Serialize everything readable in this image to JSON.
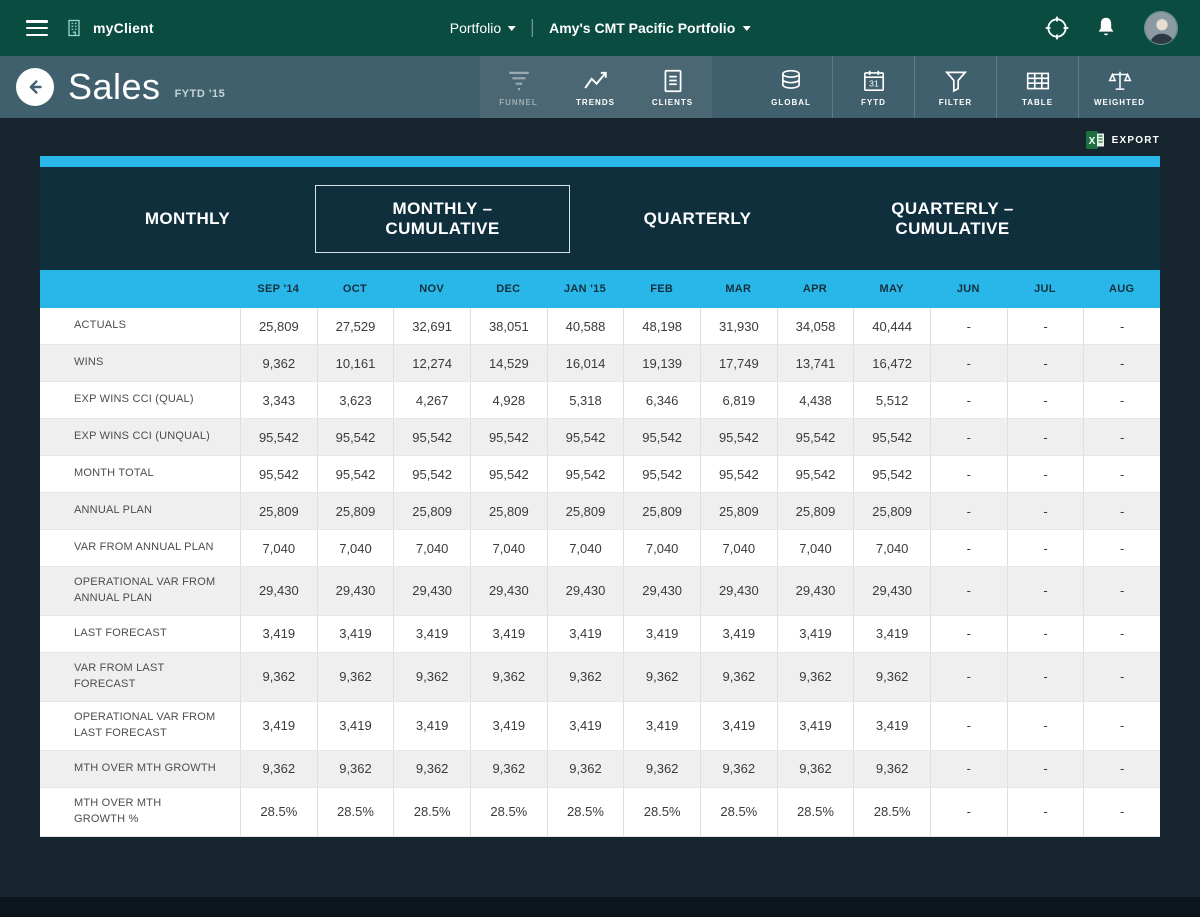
{
  "topbar": {
    "brand": "myClient",
    "portfolio_dropdown": "Portfolio",
    "portfolio_name": "Amy's CMT Pacific Portfolio"
  },
  "header": {
    "title": "Sales",
    "period": "FYTD '15",
    "nav": [
      {
        "label": "FUNNEL"
      },
      {
        "label": "TRENDS"
      },
      {
        "label": "CLIENTS"
      }
    ],
    "tools": [
      {
        "label": "GLOBAL"
      },
      {
        "label": "FYTD",
        "icon_text": "31"
      },
      {
        "label": "FILTER"
      },
      {
        "label": "TABLE"
      },
      {
        "label": "WEIGHTED"
      }
    ]
  },
  "export": {
    "label": "EXPORT"
  },
  "active_tab": "MONTHLY – CUMULATIVE",
  "tabs": [
    {
      "label": "MONTHLY"
    },
    {
      "label": "MONTHLY – CUMULATIVE"
    },
    {
      "label": "QUARTERLY"
    },
    {
      "label": "QUARTERLY – CUMULATIVE"
    }
  ],
  "table": {
    "columns": [
      "SEP '14",
      "OCT",
      "NOV",
      "DEC",
      "JAN '15",
      "FEB",
      "MAR",
      "APR",
      "MAY",
      "JUN",
      "JUL",
      "AUG"
    ],
    "rows": [
      {
        "label": "ACTUALS",
        "values": [
          "25,809",
          "27,529",
          "32,691",
          "38,051",
          "40,588",
          "48,198",
          "31,930",
          "34,058",
          "40,444",
          "-",
          "-",
          "-"
        ]
      },
      {
        "label": "WINS",
        "values": [
          "9,362",
          "10,161",
          "12,274",
          "14,529",
          "16,014",
          "19,139",
          "17,749",
          "13,741",
          "16,472",
          "-",
          "-",
          "-"
        ]
      },
      {
        "label": "EXP WINS CCI (QUAL)",
        "values": [
          "3,343",
          "3,623",
          "4,267",
          "4,928",
          "5,318",
          "6,346",
          "6,819",
          "4,438",
          "5,512",
          "-",
          "-",
          "-"
        ]
      },
      {
        "label": "EXP WINS CCI (UNQUAL)",
        "values": [
          "95,542",
          "95,542",
          "95,542",
          "95,542",
          "95,542",
          "95,542",
          "95,542",
          "95,542",
          "95,542",
          "-",
          "-",
          "-"
        ]
      },
      {
        "label": "MONTH TOTAL",
        "values": [
          "95,542",
          "95,542",
          "95,542",
          "95,542",
          "95,542",
          "95,542",
          "95,542",
          "95,542",
          "95,542",
          "-",
          "-",
          "-"
        ]
      },
      {
        "label": "ANNUAL PLAN",
        "values": [
          "25,809",
          "25,809",
          "25,809",
          "25,809",
          "25,809",
          "25,809",
          "25,809",
          "25,809",
          "25,809",
          "-",
          "-",
          "-"
        ]
      },
      {
        "label": "VAR FROM ANNUAL PLAN",
        "values": [
          "7,040",
          "7,040",
          "7,040",
          "7,040",
          "7,040",
          "7,040",
          "7,040",
          "7,040",
          "7,040",
          "-",
          "-",
          "-"
        ]
      },
      {
        "label": "OPERATIONAL VAR FROM\nANNUAL PLAN",
        "values": [
          "29,430",
          "29,430",
          "29,430",
          "29,430",
          "29,430",
          "29,430",
          "29,430",
          "29,430",
          "29,430",
          "-",
          "-",
          "-"
        ]
      },
      {
        "label": "LAST FORECAST",
        "values": [
          "3,419",
          "3,419",
          "3,419",
          "3,419",
          "3,419",
          "3,419",
          "3,419",
          "3,419",
          "3,419",
          "-",
          "-",
          "-"
        ]
      },
      {
        "label": "VAR FROM LAST\nFORECAST",
        "values": [
          "9,362",
          "9,362",
          "9,362",
          "9,362",
          "9,362",
          "9,362",
          "9,362",
          "9,362",
          "9,362",
          "-",
          "-",
          "-"
        ]
      },
      {
        "label": "OPERATIONAL VAR FROM\nLAST FORECAST",
        "values": [
          "3,419",
          "3,419",
          "3,419",
          "3,419",
          "3,419",
          "3,419",
          "3,419",
          "3,419",
          "3,419",
          "-",
          "-",
          "-"
        ]
      },
      {
        "label": "MTH OVER MTH GROWTH",
        "values": [
          "9,362",
          "9,362",
          "9,362",
          "9,362",
          "9,362",
          "9,362",
          "9,362",
          "9,362",
          "9,362",
          "-",
          "-",
          "-"
        ]
      },
      {
        "label": "MTH OVER MTH\nGROWTH %",
        "values": [
          "28.5%",
          "28.5%",
          "28.5%",
          "28.5%",
          "28.5%",
          "28.5%",
          "28.5%",
          "28.5%",
          "28.5%",
          "-",
          "-",
          "-"
        ]
      }
    ]
  },
  "colors": {
    "topbar": "#0a4c40",
    "subheader": "#40606d",
    "background": "#15242d",
    "panel": "#0f2f3d",
    "accent": "#29b6e9",
    "row_alt": "#efefef",
    "excel_green": "#1d6f42"
  }
}
